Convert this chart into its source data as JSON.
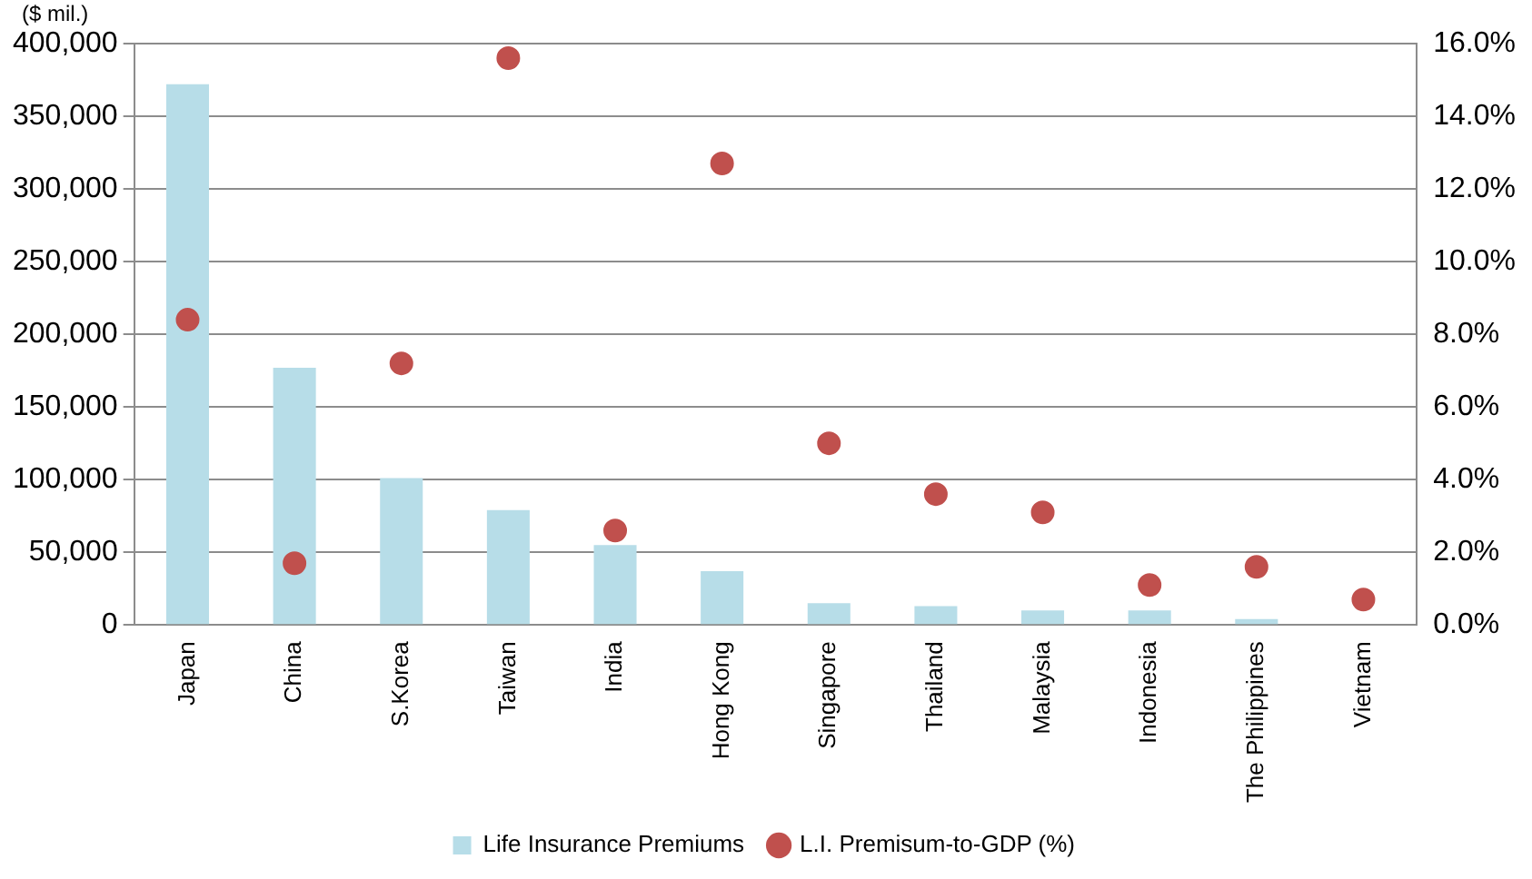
{
  "chart_data": {
    "type": "bar",
    "ylabel": "($ mil.)",
    "categories": [
      "Japan",
      "China",
      "S.Korea",
      "Taiwan",
      "India",
      "Hong Kong",
      "Singapore",
      "Thailand",
      "Malaysia",
      "Indonesia",
      "The Philippines",
      "Vietnam"
    ],
    "series": [
      {
        "name": "Life Insurance Premiums",
        "color": "#b7dde8",
        "values": [
          372000,
          177000,
          101000,
          79000,
          55000,
          37000,
          15000,
          13000,
          10000,
          10000,
          4000,
          null
        ]
      },
      {
        "name": "L.I. Premisum-to-GDP (%)",
        "type": "scatter",
        "axis": "y2",
        "marker": "circle",
        "color": "#c0504d",
        "values": [
          8.4,
          1.7,
          7.2,
          15.6,
          2.6,
          12.7,
          5.0,
          3.6,
          3.1,
          1.1,
          1.6,
          0.7
        ]
      }
    ],
    "ylim": [
      0,
      400000
    ],
    "yticks": [
      {
        "value": 0,
        "label": "0"
      },
      {
        "value": 50000,
        "label": "50,000"
      },
      {
        "value": 100000,
        "label": "100,000"
      },
      {
        "value": 150000,
        "label": "150,000"
      },
      {
        "value": 200000,
        "label": "200,000"
      },
      {
        "value": 250000,
        "label": "250,000"
      },
      {
        "value": 300000,
        "label": "300,000"
      },
      {
        "value": 350000,
        "label": "350,000"
      },
      {
        "value": 400000,
        "label": "400,000"
      }
    ],
    "y2lim": [
      0,
      16
    ],
    "y2ticks": [
      {
        "value": 0,
        "label": "0.0%"
      },
      {
        "value": 2,
        "label": "2.0%"
      },
      {
        "value": 4,
        "label": "4.0%"
      },
      {
        "value": 6,
        "label": "6.0%"
      },
      {
        "value": 8,
        "label": "8.0%"
      },
      {
        "value": 10,
        "label": "10.0%"
      },
      {
        "value": 12,
        "label": "12.0%"
      },
      {
        "value": 14,
        "label": "14.0%"
      },
      {
        "value": 16,
        "label": "16.0%"
      }
    ],
    "grid": "y",
    "legend": "bottom"
  }
}
